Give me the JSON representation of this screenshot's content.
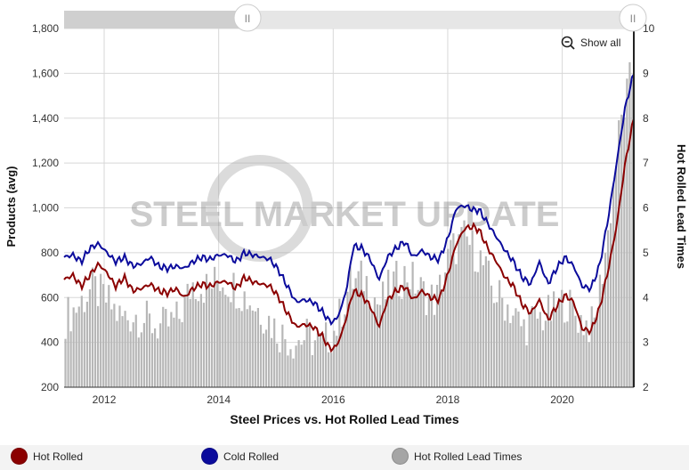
{
  "chart_data": {
    "type": "line",
    "title": "Steel Prices vs. Hot Rolled Lead Times",
    "xlabel": "Steel Prices vs. Hot Rolled Lead Times",
    "ylabel_left": "Products (avg)",
    "ylabel_right": "Hot Rolled Lead Times",
    "xlim": [
      2011.3,
      2021.25
    ],
    "ylim_left": [
      200,
      1800
    ],
    "ylim_right": [
      2,
      10
    ],
    "x_ticks": [
      "2012",
      "2014",
      "2016",
      "2018",
      "2020"
    ],
    "y_left_ticks": [
      "200",
      "400",
      "600",
      "800",
      "1,000",
      "1,200",
      "1,400",
      "1,600",
      "1,800"
    ],
    "y_right_ticks": [
      "2",
      "3",
      "4",
      "5",
      "6",
      "7",
      "8",
      "9",
      "10"
    ],
    "series": [
      {
        "name": "Hot Rolled",
        "color": "#8b0000",
        "axis": "left",
        "points": [
          [
            2011.3,
            680
          ],
          [
            2011.45,
            700
          ],
          [
            2011.6,
            650
          ],
          [
            2011.75,
            700
          ],
          [
            2011.9,
            750
          ],
          [
            2012.05,
            710
          ],
          [
            2012.2,
            650
          ],
          [
            2012.35,
            690
          ],
          [
            2012.5,
            630
          ],
          [
            2012.65,
            640
          ],
          [
            2012.8,
            660
          ],
          [
            2012.95,
            630
          ],
          [
            2013.1,
            620
          ],
          [
            2013.25,
            640
          ],
          [
            2013.4,
            600
          ],
          [
            2013.55,
            640
          ],
          [
            2013.7,
            660
          ],
          [
            2013.85,
            650
          ],
          [
            2014.0,
            670
          ],
          [
            2014.15,
            670
          ],
          [
            2014.3,
            640
          ],
          [
            2014.45,
            690
          ],
          [
            2014.6,
            670
          ],
          [
            2014.75,
            660
          ],
          [
            2014.9,
            650
          ],
          [
            2015.05,
            600
          ],
          [
            2015.2,
            530
          ],
          [
            2015.35,
            470
          ],
          [
            2015.5,
            480
          ],
          [
            2015.65,
            470
          ],
          [
            2015.8,
            430
          ],
          [
            2015.95,
            370
          ],
          [
            2016.05,
            380
          ],
          [
            2016.15,
            440
          ],
          [
            2016.25,
            530
          ],
          [
            2016.35,
            630
          ],
          [
            2016.5,
            610
          ],
          [
            2016.65,
            560
          ],
          [
            2016.8,
            470
          ],
          [
            2016.95,
            590
          ],
          [
            2017.1,
            630
          ],
          [
            2017.25,
            650
          ],
          [
            2017.4,
            590
          ],
          [
            2017.55,
            630
          ],
          [
            2017.7,
            600
          ],
          [
            2017.85,
            590
          ],
          [
            2018.0,
            700
          ],
          [
            2018.15,
            840
          ],
          [
            2018.3,
            910
          ],
          [
            2018.45,
            915
          ],
          [
            2018.55,
            900
          ],
          [
            2018.7,
            820
          ],
          [
            2018.85,
            760
          ],
          [
            2019.0,
            690
          ],
          [
            2019.15,
            650
          ],
          [
            2019.3,
            570
          ],
          [
            2019.45,
            530
          ],
          [
            2019.6,
            590
          ],
          [
            2019.75,
            500
          ],
          [
            2019.9,
            560
          ],
          [
            2020.05,
            610
          ],
          [
            2020.2,
            580
          ],
          [
            2020.35,
            460
          ],
          [
            2020.5,
            450
          ],
          [
            2020.65,
            550
          ],
          [
            2020.8,
            720
          ],
          [
            2020.95,
            920
          ],
          [
            2021.1,
            1200
          ],
          [
            2021.25,
            1400
          ]
        ]
      },
      {
        "name": "Cold Rolled",
        "color": "#0b0b9c",
        "axis": "left",
        "points": [
          [
            2011.3,
            780
          ],
          [
            2011.45,
            790
          ],
          [
            2011.6,
            760
          ],
          [
            2011.75,
            820
          ],
          [
            2011.9,
            840
          ],
          [
            2012.05,
            800
          ],
          [
            2012.2,
            760
          ],
          [
            2012.35,
            780
          ],
          [
            2012.5,
            740
          ],
          [
            2012.65,
            750
          ],
          [
            2012.8,
            780
          ],
          [
            2012.95,
            740
          ],
          [
            2013.1,
            730
          ],
          [
            2013.25,
            740
          ],
          [
            2013.4,
            730
          ],
          [
            2013.55,
            760
          ],
          [
            2013.7,
            780
          ],
          [
            2013.85,
            770
          ],
          [
            2014.0,
            790
          ],
          [
            2014.15,
            790
          ],
          [
            2014.3,
            760
          ],
          [
            2014.45,
            800
          ],
          [
            2014.6,
            790
          ],
          [
            2014.75,
            780
          ],
          [
            2014.9,
            770
          ],
          [
            2015.05,
            720
          ],
          [
            2015.2,
            650
          ],
          [
            2015.35,
            580
          ],
          [
            2015.5,
            590
          ],
          [
            2015.65,
            580
          ],
          [
            2015.8,
            540
          ],
          [
            2015.95,
            490
          ],
          [
            2016.05,
            500
          ],
          [
            2016.15,
            560
          ],
          [
            2016.25,
            660
          ],
          [
            2016.35,
            830
          ],
          [
            2016.5,
            820
          ],
          [
            2016.65,
            770
          ],
          [
            2016.8,
            680
          ],
          [
            2016.95,
            780
          ],
          [
            2017.1,
            820
          ],
          [
            2017.25,
            850
          ],
          [
            2017.4,
            780
          ],
          [
            2017.55,
            810
          ],
          [
            2017.7,
            780
          ],
          [
            2017.85,
            770
          ],
          [
            2018.0,
            860
          ],
          [
            2018.15,
            1000
          ],
          [
            2018.3,
            1010
          ],
          [
            2018.45,
            990
          ],
          [
            2018.55,
            990
          ],
          [
            2018.7,
            930
          ],
          [
            2018.85,
            870
          ],
          [
            2019.0,
            810
          ],
          [
            2019.15,
            760
          ],
          [
            2019.3,
            690
          ],
          [
            2019.45,
            660
          ],
          [
            2019.6,
            760
          ],
          [
            2019.75,
            660
          ],
          [
            2019.9,
            730
          ],
          [
            2020.05,
            780
          ],
          [
            2020.2,
            740
          ],
          [
            2020.35,
            650
          ],
          [
            2020.5,
            640
          ],
          [
            2020.65,
            740
          ],
          [
            2020.8,
            950
          ],
          [
            2020.95,
            1200
          ],
          [
            2021.1,
            1450
          ],
          [
            2021.25,
            1600
          ]
        ]
      },
      {
        "name": "Hot Rolled Lead Times",
        "type": "bar",
        "color": "#b7b7b7",
        "axis": "right",
        "points": [
          [
            2011.3,
            3.6
          ],
          [
            2011.55,
            3.9
          ],
          [
            2011.8,
            4.3
          ],
          [
            2012.05,
            4.0
          ],
          [
            2012.3,
            3.6
          ],
          [
            2012.55,
            3.7
          ],
          [
            2012.8,
            3.5
          ],
          [
            2013.05,
            3.4
          ],
          [
            2013.3,
            3.6
          ],
          [
            2013.55,
            4.4
          ],
          [
            2013.8,
            4.3
          ],
          [
            2014.05,
            4.5
          ],
          [
            2014.3,
            4.3
          ],
          [
            2014.55,
            4.0
          ],
          [
            2014.8,
            3.7
          ],
          [
            2015.05,
            3.3
          ],
          [
            2015.3,
            3.1
          ],
          [
            2015.55,
            3.2
          ],
          [
            2015.8,
            3.0
          ],
          [
            2016.05,
            3.4
          ],
          [
            2016.3,
            4.4
          ],
          [
            2016.55,
            4.5
          ],
          [
            2016.8,
            3.9
          ],
          [
            2017.05,
            4.4
          ],
          [
            2017.3,
            4.6
          ],
          [
            2017.55,
            4.2
          ],
          [
            2017.8,
            4.0
          ],
          [
            2018.05,
            5.1
          ],
          [
            2018.3,
            5.4
          ],
          [
            2018.55,
            5.0
          ],
          [
            2018.8,
            4.2
          ],
          [
            2019.05,
            3.9
          ],
          [
            2019.3,
            3.4
          ],
          [
            2019.55,
            3.6
          ],
          [
            2019.8,
            3.7
          ],
          [
            2020.05,
            4.0
          ],
          [
            2020.3,
            3.6
          ],
          [
            2020.55,
            3.4
          ],
          [
            2020.8,
            5.5
          ],
          [
            2021.0,
            7.8
          ],
          [
            2021.2,
            9.0
          ]
        ]
      }
    ]
  },
  "navigator": {
    "left_handle": "II",
    "right_handle": "II"
  },
  "controls": {
    "show_all_label": "Show all"
  },
  "legend": {
    "items": [
      {
        "label": "Hot Rolled",
        "color": "#8b0000"
      },
      {
        "label": "Cold Rolled",
        "color": "#0b0b9c"
      },
      {
        "label": "Hot Rolled Lead Times",
        "color": "#a5a5a5"
      }
    ]
  },
  "watermark": "STEEL MARKET UPDATE"
}
